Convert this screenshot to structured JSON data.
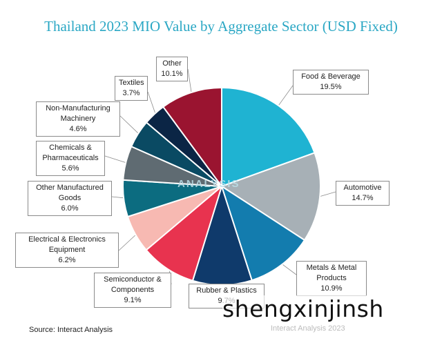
{
  "chart_data": {
    "type": "pie",
    "title": "Thailand 2023 MIO Value by Aggregate Sector (USD Fixed)",
    "slices": [
      {
        "label": "Food & Beverage",
        "pct": "19.5%",
        "value": 19.5,
        "color": "#1fb3d2"
      },
      {
        "label": "Automotive",
        "pct": "14.7%",
        "value": 14.7,
        "color": "#a7b0b6"
      },
      {
        "label": "Metals & Metal Products",
        "pct": "10.9%",
        "value": 10.9,
        "color": "#137cae"
      },
      {
        "label": "Rubber & Plastics",
        "pct": "9.7%",
        "value": 9.7,
        "color": "#0f3a6b"
      },
      {
        "label": "Semiconductor & Components",
        "pct": "9.1%",
        "value": 9.1,
        "color": "#e8334f"
      },
      {
        "label": "Electrical & Electronics Equipment",
        "pct": "6.2%",
        "value": 6.2,
        "color": "#f7b9b2"
      },
      {
        "label": "Other Manufactured Goods",
        "pct": "6.0%",
        "value": 6.0,
        "color": "#0c6c80"
      },
      {
        "label": "Chemicals & Pharmaceuticals",
        "pct": "5.6%",
        "value": 5.6,
        "color": "#5f6b72"
      },
      {
        "label": "Non-Manufacturing Machinery",
        "pct": "4.6%",
        "value": 4.6,
        "color": "#0a4a63"
      },
      {
        "label": "Textiles",
        "pct": "3.7%",
        "value": 3.7,
        "color": "#0b2545"
      },
      {
        "label": "Other",
        "pct": "10.1%",
        "value": 10.1,
        "color": "#9a1430"
      }
    ]
  },
  "source": "Source: Interact Analysis",
  "logo_text": "ANALYSIS",
  "watermark": "shengxinjinsh",
  "footer_note": "Interact Analysis 2023"
}
